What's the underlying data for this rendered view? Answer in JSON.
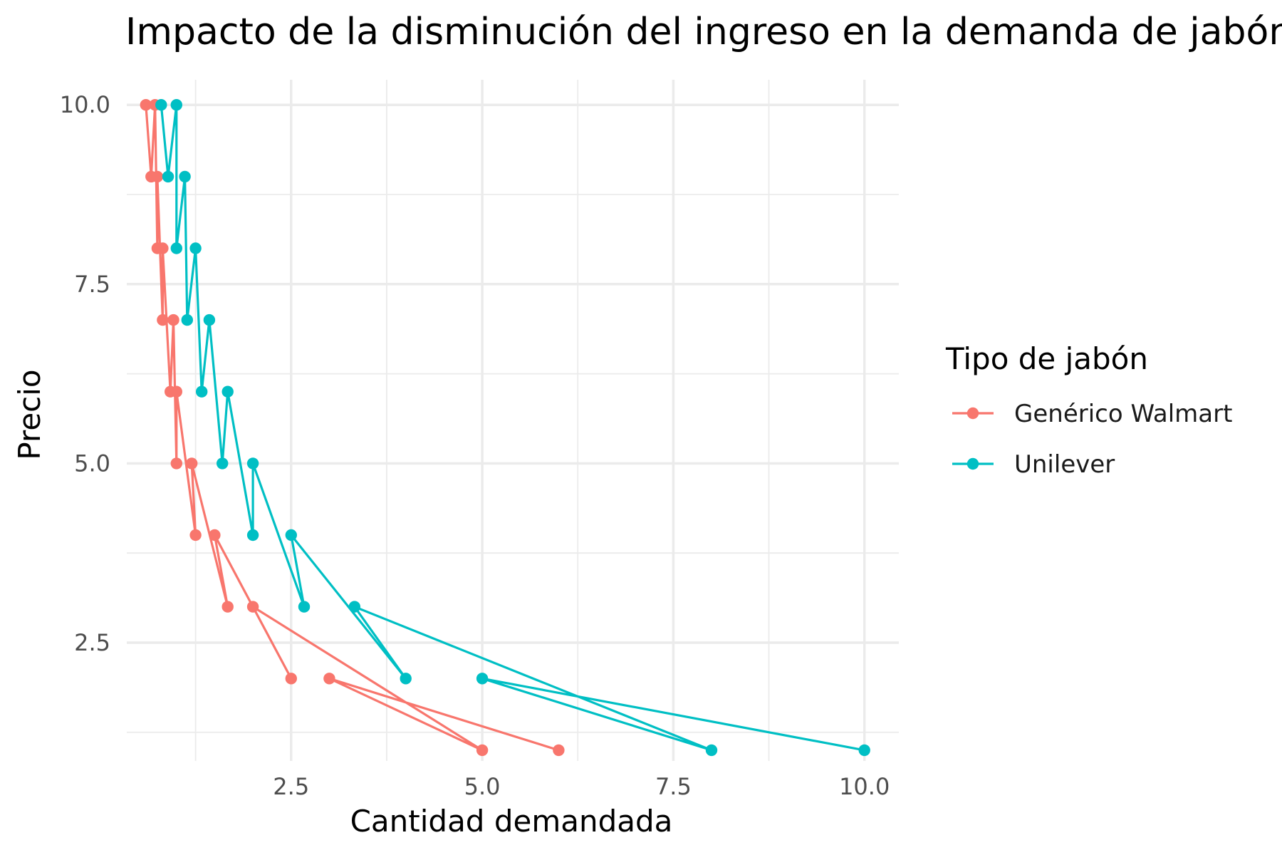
{
  "chart_data": {
    "type": "line",
    "title": "Impacto de la disminución del ingreso en la demanda de jabón",
    "xlabel": "Cantidad demandada",
    "ylabel": "Precio",
    "xlim": [
      0.35,
      10.45
    ],
    "ylim": [
      0.85,
      10.35
    ],
    "x_ticks": [
      2.5,
      5.0,
      7.5,
      10.0
    ],
    "x_tick_labels": [
      "2.5",
      "5.0",
      "7.5",
      "10.0"
    ],
    "y_ticks": [
      2.5,
      5.0,
      7.5,
      10.0
    ],
    "y_tick_labels": [
      "2.5",
      "5.0",
      "7.5",
      "10.0"
    ],
    "grid": true,
    "legend": {
      "title": "Tipo de jabón",
      "position": "right"
    },
    "series": [
      {
        "name": "Genérico Walmart",
        "color": "#f8766d",
        "points": [
          {
            "x": 0.6,
            "y": 10
          },
          {
            "x": 0.67,
            "y": 9
          },
          {
            "x": 0.67,
            "y": 10
          },
          {
            "x": 0.75,
            "y": 8
          },
          {
            "x": 0.72,
            "y": 9
          },
          {
            "x": 0.86,
            "y": 7
          },
          {
            "x": 0.82,
            "y": 8
          },
          {
            "x": 1.0,
            "y": 6
          },
          {
            "x": 0.96,
            "y": 7
          },
          {
            "x": 1.2,
            "y": 5
          },
          {
            "x": 1.14,
            "y": 6
          },
          {
            "x": 1.5,
            "y": 4
          },
          {
            "x": 1.4,
            "y": 5
          },
          {
            "x": 2.0,
            "y": 3
          },
          {
            "x": 1.67,
            "y": 4
          },
          {
            "x": 3.0,
            "y": 2
          },
          {
            "x": 2.5,
            "y": 3
          },
          {
            "x": 6.0,
            "y": 1
          },
          {
            "x": 5.0,
            "y": 2
          }
        ],
        "path_order": [
          {
            "x": 0.6,
            "y": 10
          },
          {
            "x": 0.67,
            "y": 9
          },
          {
            "x": 0.72,
            "y": 10
          },
          {
            "x": 0.75,
            "y": 8
          },
          {
            "x": 0.75,
            "y": 9
          },
          {
            "x": 0.82,
            "y": 7
          },
          {
            "x": 0.82,
            "y": 8
          },
          {
            "x": 0.92,
            "y": 6
          },
          {
            "x": 0.96,
            "y": 7
          },
          {
            "x": 1.0,
            "y": 5
          },
          {
            "x": 1.0,
            "y": 6
          },
          {
            "x": 1.25,
            "y": 4
          },
          {
            "x": 1.2,
            "y": 5
          },
          {
            "x": 1.67,
            "y": 3
          },
          {
            "x": 1.5,
            "y": 4
          },
          {
            "x": 2.5,
            "y": 2
          },
          {
            "x": 2.0,
            "y": 3
          },
          {
            "x": 5.0,
            "y": 1
          },
          {
            "x": 3.0,
            "y": 2
          },
          {
            "x": 6.0,
            "y": 1
          }
        ]
      },
      {
        "name": "Unilever",
        "color": "#00bfc4",
        "path_order": [
          {
            "x": 0.8,
            "y": 10
          },
          {
            "x": 0.89,
            "y": 9
          },
          {
            "x": 1.0,
            "y": 10
          },
          {
            "x": 1.0,
            "y": 8
          },
          {
            "x": 1.11,
            "y": 9
          },
          {
            "x": 1.14,
            "y": 7
          },
          {
            "x": 1.25,
            "y": 8
          },
          {
            "x": 1.33,
            "y": 6
          },
          {
            "x": 1.43,
            "y": 7
          },
          {
            "x": 1.6,
            "y": 5
          },
          {
            "x": 1.67,
            "y": 6
          },
          {
            "x": 2.0,
            "y": 4
          },
          {
            "x": 2.0,
            "y": 5
          },
          {
            "x": 2.67,
            "y": 3
          },
          {
            "x": 2.5,
            "y": 4
          },
          {
            "x": 4.0,
            "y": 2
          },
          {
            "x": 3.33,
            "y": 3
          },
          {
            "x": 8.0,
            "y": 1
          },
          {
            "x": 5.0,
            "y": 2
          },
          {
            "x": 10.0,
            "y": 1
          }
        ]
      }
    ]
  }
}
